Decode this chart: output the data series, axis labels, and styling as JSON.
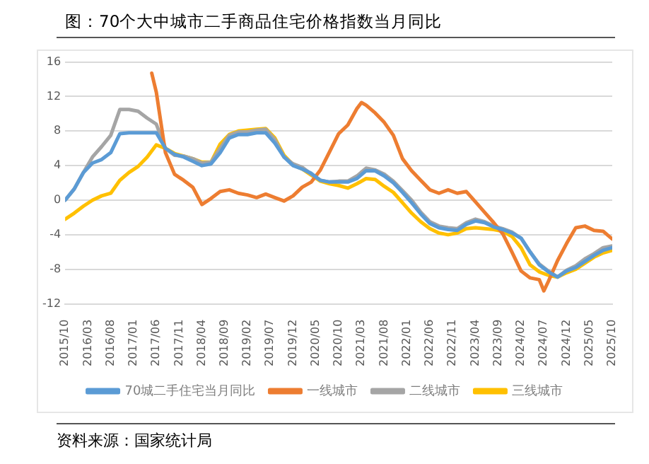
{
  "chart_data": {
    "type": "line",
    "title": "图：70个大中城市二手商品住宅价格指数当月同比",
    "annotations": [
      "资料来源：国家统计局"
    ],
    "x": [
      "2015-10",
      "2015-12",
      "2016-02",
      "2016-04",
      "2016-06",
      "2016-08",
      "2016-10",
      "2016-12",
      "2017-02",
      "2017-04",
      "2017-06",
      "2017-08",
      "2017-10",
      "2017-12",
      "2018-02",
      "2018-04",
      "2018-06",
      "2018-08",
      "2018-10",
      "2018-12",
      "2019-02",
      "2019-04",
      "2019-06",
      "2019-08",
      "2019-10",
      "2019-12",
      "2020-02",
      "2020-04",
      "2020-06",
      "2020-08",
      "2020-10",
      "2020-12",
      "2021-02",
      "2021-04",
      "2021-06",
      "2021-08",
      "2021-10",
      "2021-12",
      "2022-02",
      "2022-04",
      "2022-06",
      "2022-08",
      "2022-10",
      "2022-12",
      "2023-02",
      "2023-04",
      "2023-06",
      "2023-08",
      "2023-10",
      "2023-12",
      "2024-02",
      "2024-04",
      "2024-06",
      "2024-08",
      "2024-10",
      "2024-12",
      "2025-02",
      "2025-04",
      "2025-06",
      "2025-08",
      "2025-10"
    ],
    "series": [
      {
        "name": "70城二手住宅当月同比",
        "color": "#5b9bd5",
        "values": [
          0,
          1.3,
          3.2,
          4.3,
          4.7,
          5.5,
          7.7,
          7.8,
          7.8,
          7.8,
          7.8,
          6.0,
          5.3,
          5.0,
          4.5,
          4.0,
          4.2,
          5.5,
          7.2,
          7.6,
          7.6,
          7.8,
          7.8,
          6.6,
          5.0,
          4.0,
          3.6,
          3.1,
          2.3,
          2.1,
          2.1,
          2.1,
          2.5,
          3.4,
          3.4,
          2.8,
          2.0,
          0.9,
          -0.3,
          -1.6,
          -2.7,
          -3.2,
          -3.4,
          -3.5,
          -2.8,
          -2.4,
          -2.6,
          -3.1,
          -3.4,
          -3.8,
          -4.4,
          -6.0,
          -7.5,
          -8.3,
          -8.9,
          -8.2,
          -7.8,
          -7.1,
          -6.4,
          -5.8,
          -5.5
        ]
      },
      {
        "name": "一线城市",
        "color": "#ed7d31",
        "x": [
          "2017-05",
          "2017-06",
          "2017-08",
          "2017-10",
          "2017-12",
          "2018-02",
          "2018-04",
          "2018-06",
          "2018-08",
          "2018-10",
          "2018-12",
          "2019-02",
          "2019-04",
          "2019-06",
          "2019-08",
          "2019-10",
          "2019-12",
          "2020-02",
          "2020-04",
          "2020-06",
          "2020-08",
          "2020-10",
          "2020-12",
          "2021-02",
          "2021-03",
          "2021-04",
          "2021-06",
          "2021-08",
          "2021-10",
          "2021-12",
          "2022-02",
          "2022-04",
          "2022-06",
          "2022-08",
          "2022-10",
          "2022-12",
          "2023-02",
          "2023-04",
          "2023-06",
          "2023-08",
          "2023-10",
          "2023-12",
          "2024-02",
          "2024-04",
          "2024-06",
          "2024-07",
          "2024-08",
          "2024-10",
          "2024-12",
          "2025-02",
          "2025-04",
          "2025-06",
          "2025-08",
          "2025-10"
        ],
        "values": [
          14.7,
          12.5,
          5.5,
          3.0,
          2.3,
          1.5,
          -0.5,
          0.2,
          1.0,
          1.2,
          0.8,
          0.6,
          0.3,
          0.7,
          0.3,
          -0.1,
          0.5,
          1.5,
          2.1,
          3.5,
          5.6,
          7.7,
          8.7,
          10.6,
          11.3,
          11.0,
          10.1,
          9.0,
          7.5,
          4.8,
          3.4,
          2.3,
          1.2,
          0.8,
          1.2,
          0.8,
          1.0,
          -0.2,
          -1.4,
          -2.6,
          -3.9,
          -6.0,
          -8.2,
          -9.0,
          -9.2,
          -10.5,
          -9.4,
          -7.0,
          -5.0,
          -3.2,
          -3.0,
          -3.5,
          -3.6,
          -4.5
        ]
      },
      {
        "name": "二线城市",
        "color": "#a5a5a5",
        "values": [
          0,
          1.3,
          3.2,
          5.0,
          6.2,
          7.5,
          10.5,
          10.5,
          10.3,
          9.5,
          8.8,
          6.0,
          5.2,
          5.1,
          4.8,
          4.3,
          4.4,
          6.0,
          7.5,
          7.9,
          7.9,
          8.1,
          8.2,
          7.0,
          5.0,
          4.2,
          3.8,
          3.0,
          2.3,
          2.1,
          2.2,
          2.2,
          2.8,
          3.7,
          3.5,
          3.0,
          2.2,
          1.1,
          0.0,
          -1.4,
          -2.5,
          -3.0,
          -3.2,
          -3.3,
          -2.6,
          -2.2,
          -2.5,
          -3.0,
          -3.3,
          -3.7,
          -4.4,
          -6.0,
          -7.4,
          -8.2,
          -8.9,
          -8.1,
          -7.6,
          -6.8,
          -6.2,
          -5.5,
          -5.3
        ]
      },
      {
        "name": "三线城市",
        "color": "#ffc000",
        "values": [
          -2.2,
          -1.5,
          -0.7,
          0.0,
          0.5,
          0.8,
          2.3,
          3.2,
          3.9,
          5.0,
          6.4,
          6.0,
          5.4,
          5.1,
          4.8,
          4.4,
          4.4,
          6.5,
          7.6,
          8.0,
          8.1,
          8.2,
          8.3,
          7.2,
          5.2,
          4.1,
          3.6,
          2.9,
          2.2,
          1.9,
          1.7,
          1.4,
          1.9,
          2.5,
          2.4,
          1.6,
          0.9,
          -0.3,
          -1.5,
          -2.5,
          -3.3,
          -3.8,
          -4.0,
          -3.8,
          -3.3,
          -3.2,
          -3.3,
          -3.4,
          -3.6,
          -4.2,
          -5.5,
          -7.5,
          -8.3,
          -8.7,
          -8.9,
          -8.4,
          -8.0,
          -7.3,
          -6.6,
          -6.1,
          -5.8
        ]
      }
    ],
    "xlim": [
      "2015-10",
      "2025-10"
    ],
    "xticks": [
      {
        "value": "2015-10",
        "label": "2015/10"
      },
      {
        "value": "2016-03",
        "label": "2016/03"
      },
      {
        "value": "2016-08",
        "label": "2016/08"
      },
      {
        "value": "2017-01",
        "label": "2017/01"
      },
      {
        "value": "2017-06",
        "label": "2017/06"
      },
      {
        "value": "2017-11",
        "label": "2017/11"
      },
      {
        "value": "2018-04",
        "label": "2018/04"
      },
      {
        "value": "2018-09",
        "label": "2018/09"
      },
      {
        "value": "2019-02",
        "label": "2019/02"
      },
      {
        "value": "2019-07",
        "label": "2019/07"
      },
      {
        "value": "2019-12",
        "label": "2019/12"
      },
      {
        "value": "2020-05",
        "label": "2020/05"
      },
      {
        "value": "2020-10",
        "label": "2020/10"
      },
      {
        "value": "2021-03",
        "label": "2021/03"
      },
      {
        "value": "2021-08",
        "label": "2021/08"
      },
      {
        "value": "2022-01",
        "label": "2022/01"
      },
      {
        "value": "2022-06",
        "label": "2022/06"
      },
      {
        "value": "2022-11",
        "label": "2022/11"
      },
      {
        "value": "2023-04",
        "label": "2023/04"
      },
      {
        "value": "2023-09",
        "label": "2023/09"
      },
      {
        "value": "2024-02",
        "label": "2024/02"
      },
      {
        "value": "2024-07",
        "label": "2024/07"
      },
      {
        "value": "2024-12",
        "label": "2024/12"
      },
      {
        "value": "2025-05",
        "label": "2025/05"
      },
      {
        "value": "2025-10",
        "label": "2025/10"
      }
    ],
    "ylim": [
      -12,
      16
    ],
    "yticks": [
      -12,
      -8,
      -4,
      0,
      4,
      8,
      12,
      16
    ],
    "grid": "y",
    "legend": "bottom",
    "marker": "none",
    "line_style": "solid"
  }
}
